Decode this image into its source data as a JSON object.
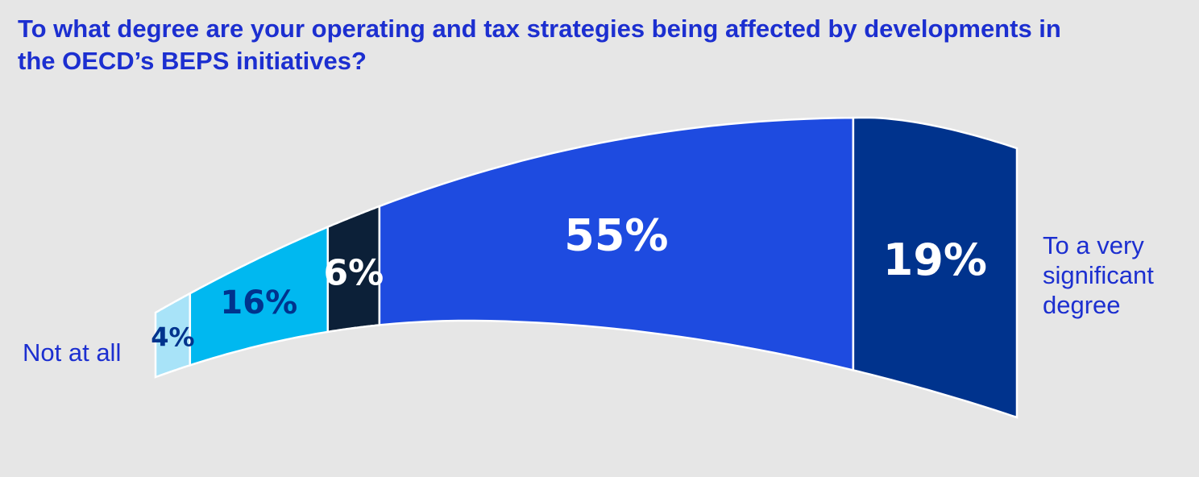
{
  "chart_data": {
    "type": "bar",
    "title": "To what degree are your operating and tax strategies being affected by developments in the OECD’s BEPS initiatives?",
    "categories": [
      "Not at all",
      "",
      "",
      "",
      "To a very significant degree"
    ],
    "values": [
      4,
      16,
      6,
      55,
      19
    ],
    "value_labels": [
      "4%",
      "16%",
      "6%",
      "55%",
      "19%"
    ],
    "colors": [
      "#a8e3f8",
      "#00b8f0",
      "#0c2038",
      "#1e4be0",
      "#00338d"
    ],
    "label_colors": [
      "#00338d",
      "#00338d",
      "#ffffff",
      "#ffffff",
      "#ffffff"
    ],
    "scale_labels": {
      "low": "Not at all",
      "high": "To a very significant degree"
    }
  }
}
